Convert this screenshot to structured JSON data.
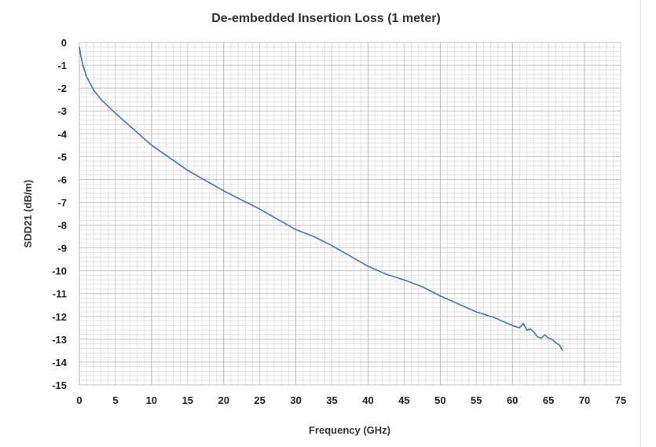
{
  "chart_data": {
    "type": "line",
    "title": "De-embedded Insertion Loss (1 meter)",
    "xlabel": "Frequency (GHz)",
    "ylabel": "SDD21 (dB/m)",
    "xlim": [
      0,
      75
    ],
    "ylim": [
      -15,
      0
    ],
    "xticks": [
      0,
      5,
      10,
      15,
      20,
      25,
      30,
      35,
      40,
      45,
      50,
      55,
      60,
      65,
      70,
      75
    ],
    "yticks": [
      0,
      -1,
      -2,
      -3,
      -4,
      -5,
      -6,
      -7,
      -8,
      -9,
      -10,
      -11,
      -12,
      -13,
      -14,
      -15
    ],
    "grid": true,
    "minor_grid": true,
    "legend": "none",
    "color": "#4472C4",
    "series": [
      {
        "x": [
          0,
          0.2,
          0.5,
          1,
          2,
          3,
          5,
          7.5,
          10,
          12.5,
          15,
          17.5,
          20,
          22.5,
          25,
          27.5,
          30,
          32.5,
          35,
          37.5,
          40,
          42.5,
          45,
          47.5,
          50,
          52.5,
          55,
          57.5,
          60,
          61,
          61.5,
          62,
          62.5,
          63,
          63.5,
          64,
          64.5,
          65,
          65.5,
          66,
          66.5,
          67
        ],
        "y": [
          -0.2,
          -0.6,
          -1.0,
          -1.5,
          -2.1,
          -2.5,
          -3.1,
          -3.8,
          -4.5,
          -5.05,
          -5.6,
          -6.05,
          -6.5,
          -6.9,
          -7.3,
          -7.75,
          -8.2,
          -8.5,
          -8.9,
          -9.35,
          -9.8,
          -10.15,
          -10.4,
          -10.7,
          -11.1,
          -11.45,
          -11.8,
          -12.05,
          -12.4,
          -12.5,
          -12.3,
          -12.6,
          -12.55,
          -12.7,
          -12.9,
          -12.95,
          -12.8,
          -12.95,
          -13.0,
          -13.15,
          -13.25,
          -13.5
        ]
      }
    ]
  }
}
